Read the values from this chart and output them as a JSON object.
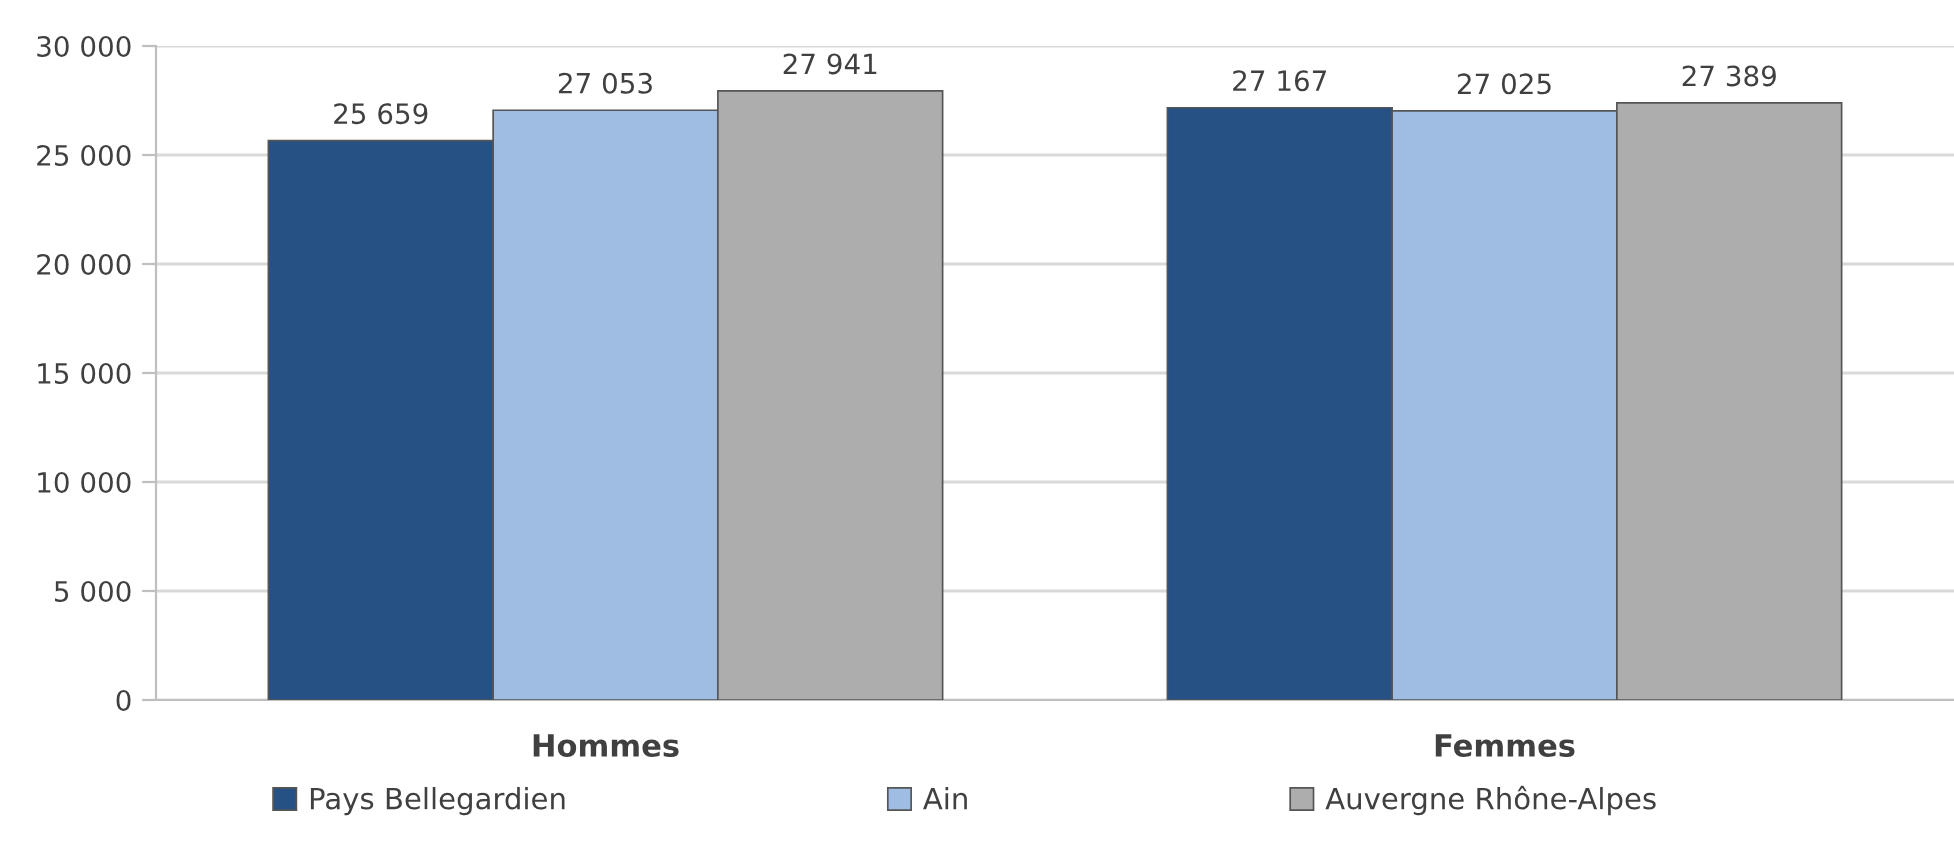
{
  "chart_data": {
    "type": "bar",
    "categories": [
      "Hommes",
      "Femmes"
    ],
    "series": [
      {
        "name": "Pays Bellegardien",
        "color": "#265185",
        "values": [
          25659,
          27167
        ],
        "value_labels": [
          "25 659",
          "27 167"
        ]
      },
      {
        "name": "Ain",
        "color": "#9fbce2",
        "values": [
          27053,
          27025
        ],
        "value_labels": [
          "27 053",
          "27 025"
        ]
      },
      {
        "name": "Auvergne Rhône-Alpes",
        "color": "#adadad",
        "values": [
          27941,
          27389
        ],
        "value_labels": [
          "27 941",
          "27 389"
        ]
      }
    ],
    "ylim": [
      0,
      30000
    ],
    "yticks": [
      {
        "value": 0,
        "label": "0"
      },
      {
        "value": 5000,
        "label": "5 000"
      },
      {
        "value": 10000,
        "label": "10 000"
      },
      {
        "value": 15000,
        "label": "15 000"
      },
      {
        "value": 20000,
        "label": "20 000"
      },
      {
        "value": 25000,
        "label": "25 000"
      },
      {
        "value": 30000,
        "label": "30 000"
      }
    ],
    "grid": "y",
    "legend": "bottom"
  }
}
